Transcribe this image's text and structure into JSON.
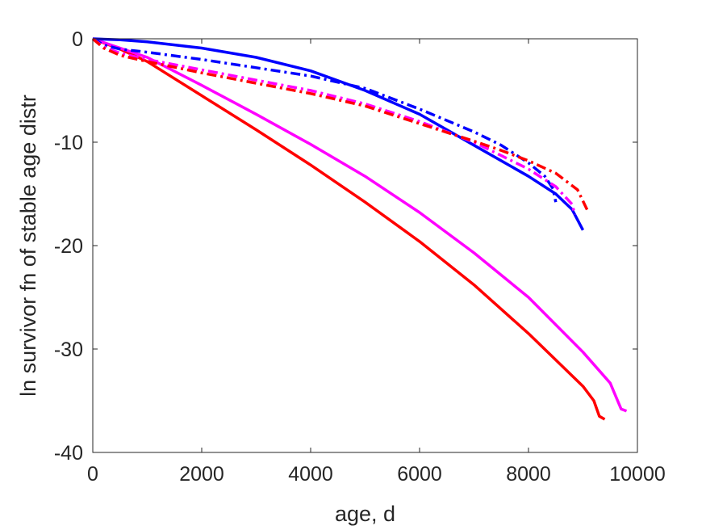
{
  "chart_data": {
    "type": "line",
    "title": "",
    "xlabel": "age, d",
    "ylabel": "ln survivor fn of stable age distr",
    "xlim": [
      0,
      10000
    ],
    "ylim": [
      -40,
      0
    ],
    "x_ticks": [
      0,
      2000,
      4000,
      6000,
      8000,
      10000
    ],
    "y_ticks": [
      0,
      -10,
      -20,
      -30,
      -40
    ],
    "x_tick_labels": [
      "0",
      "2000",
      "4000",
      "6000",
      "8000",
      "10000"
    ],
    "y_tick_labels": [
      "0",
      "-10",
      "-20",
      "-30",
      "-40"
    ],
    "grid": false,
    "legend": "none",
    "series": [
      {
        "color": "#ff0000",
        "style": "solid",
        "x": [
          0,
          500,
          1000,
          2000,
          3000,
          4000,
          5000,
          6000,
          7000,
          8000,
          9000,
          9200,
          9300,
          9400
        ],
        "y": [
          0,
          -1.0,
          -2.2,
          -5.5,
          -8.8,
          -12.2,
          -15.8,
          -19.6,
          -23.8,
          -28.5,
          -33.6,
          -35.0,
          -36.5,
          -36.8
        ]
      },
      {
        "color": "#ff00ff",
        "style": "solid",
        "x": [
          0,
          500,
          1000,
          2000,
          3000,
          4000,
          5000,
          6000,
          7000,
          8000,
          9000,
          9500,
          9700,
          9800
        ],
        "y": [
          0,
          -0.9,
          -1.8,
          -4.5,
          -7.3,
          -10.2,
          -13.3,
          -16.8,
          -20.7,
          -25.0,
          -30.3,
          -33.3,
          -35.8,
          -36.0
        ]
      },
      {
        "color": "#0000ff",
        "style": "solid",
        "x": [
          0,
          500,
          1000,
          2000,
          3000,
          4000,
          5000,
          6000,
          7000,
          8000,
          8500,
          8800,
          9000
        ],
        "y": [
          0,
          -0.1,
          -0.3,
          -0.9,
          -1.8,
          -3.1,
          -5.0,
          -7.3,
          -10.3,
          -13.3,
          -15.0,
          -16.5,
          -18.5
        ]
      },
      {
        "color": "#0000ff",
        "style": "dashdot",
        "x": [
          0,
          200,
          500,
          1000,
          2000,
          3000,
          4000,
          5000,
          6000,
          7000,
          7500,
          8000,
          8300,
          8450,
          8500
        ],
        "y": [
          0,
          -0.6,
          -1.0,
          -1.3,
          -2.0,
          -2.8,
          -3.6,
          -4.8,
          -6.8,
          -9.0,
          -10.3,
          -12.0,
          -13.3,
          -14.5,
          -15.8
        ]
      },
      {
        "color": "#ff00ff",
        "style": "dashdot",
        "x": [
          0,
          200,
          500,
          1000,
          2000,
          3000,
          4000,
          5000,
          6000,
          7000,
          7500,
          8000,
          8500,
          8800,
          8850
        ],
        "y": [
          0,
          -0.8,
          -1.4,
          -2.0,
          -3.0,
          -4.0,
          -5.0,
          -6.3,
          -8.0,
          -10.0,
          -11.3,
          -12.6,
          -14.3,
          -16.0,
          -17.0
        ]
      },
      {
        "color": "#ff0000",
        "style": "dashdot",
        "x": [
          0,
          200,
          500,
          1000,
          2000,
          3000,
          4000,
          5000,
          6000,
          7000,
          7500,
          8000,
          8500,
          8900,
          9100
        ],
        "y": [
          0,
          -0.9,
          -1.6,
          -2.2,
          -3.3,
          -4.3,
          -5.3,
          -6.5,
          -8.2,
          -9.9,
          -10.8,
          -11.8,
          -13.0,
          -14.6,
          -16.8
        ]
      }
    ]
  }
}
